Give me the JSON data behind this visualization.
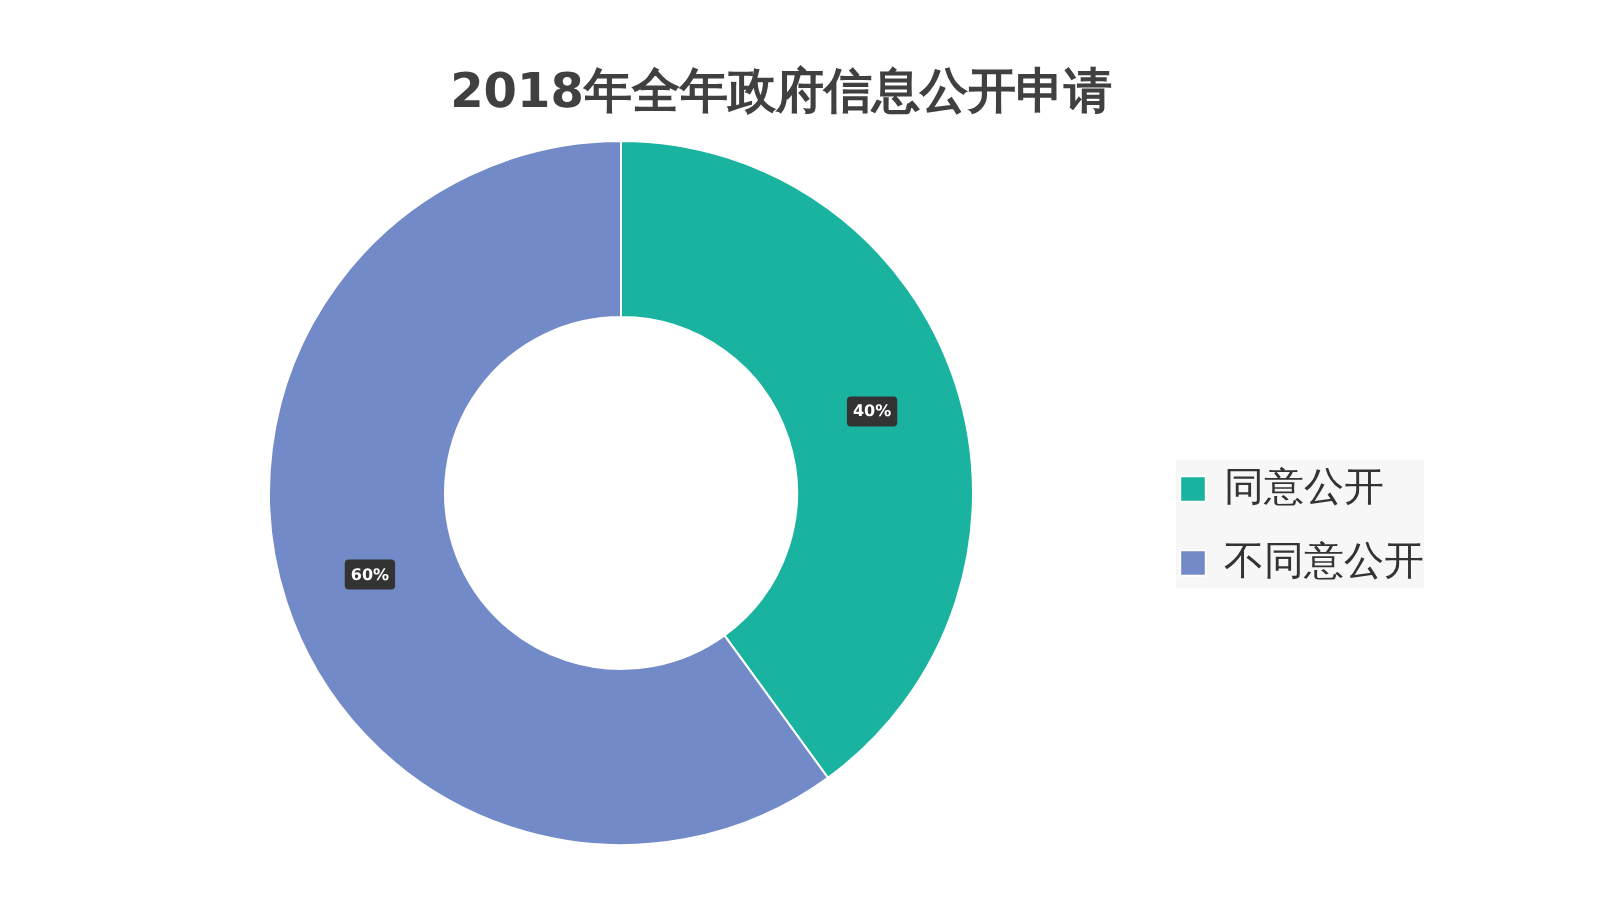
{
  "chart_data": {
    "type": "donut",
    "title": "2018年全年政府信息公开申请",
    "categories": [
      "同意公开",
      "不同意公开"
    ],
    "values": [
      40,
      60
    ],
    "colors": [
      "#1ab39f",
      "#728ac8"
    ],
    "value_labels": [
      "40%",
      "60%"
    ],
    "legend": "right"
  }
}
